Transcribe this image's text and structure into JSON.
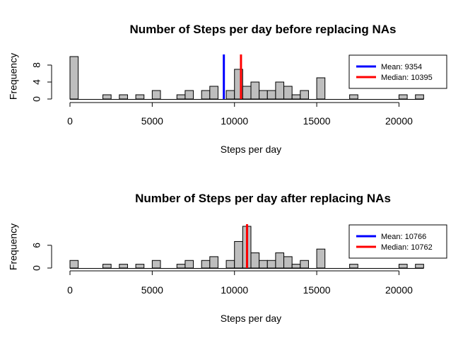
{
  "chart_data": [
    {
      "type": "bar",
      "title": "Number of Steps per day before replacing NAs",
      "xlabel": "Steps per day",
      "ylabel": "Frequency",
      "xlim": [
        0,
        22000
      ],
      "ylim": [
        0,
        10
      ],
      "x_ticks": [
        0,
        5000,
        10000,
        15000,
        20000
      ],
      "y_ticks": [
        0,
        4,
        8
      ],
      "bin_width": 500,
      "bin_start": 0,
      "counts": [
        10,
        0,
        0,
        0,
        1,
        0,
        1,
        0,
        1,
        0,
        2,
        0,
        0,
        1,
        2,
        0,
        2,
        3,
        0,
        2,
        7,
        3,
        4,
        2,
        2,
        4,
        3,
        1,
        2,
        0,
        5,
        0,
        0,
        0,
        1,
        0,
        0,
        0,
        0,
        0,
        1,
        0,
        1
      ],
      "bar_color": "#BEBEBE",
      "legend": {
        "position": "top-right",
        "entries": [
          {
            "label": "Mean:  9354",
            "color": "#0000FF"
          },
          {
            "label": "Median: 10395",
            "color": "#FF0000"
          }
        ]
      },
      "lines": [
        {
          "name": "Mean",
          "value": 9354,
          "color": "#0000FF"
        },
        {
          "name": "Median",
          "value": 10395,
          "color": "#FF0000"
        }
      ]
    },
    {
      "type": "bar",
      "title": "Number of Steps per day after replacing NAs",
      "xlabel": "Steps per day",
      "ylabel": "Frequency",
      "xlim": [
        0,
        22000
      ],
      "ylim": [
        0,
        11
      ],
      "x_ticks": [
        0,
        5000,
        10000,
        15000,
        20000
      ],
      "y_ticks": [
        0,
        6
      ],
      "bin_width": 500,
      "bin_start": 0,
      "counts": [
        2,
        0,
        0,
        0,
        1,
        0,
        1,
        0,
        1,
        0,
        2,
        0,
        0,
        1,
        2,
        0,
        2,
        3,
        0,
        2,
        7,
        11,
        4,
        2,
        2,
        4,
        3,
        1,
        2,
        0,
        5,
        0,
        0,
        0,
        1,
        0,
        0,
        0,
        0,
        0,
        1,
        0,
        1
      ],
      "bar_color": "#BEBEBE",
      "legend": {
        "position": "top-right",
        "entries": [
          {
            "label": "Mean:  10766",
            "color": "#0000FF"
          },
          {
            "label": "Median: 10762",
            "color": "#FF0000"
          }
        ]
      },
      "lines": [
        {
          "name": "Mean",
          "value": 10766,
          "color": "#0000FF"
        },
        {
          "name": "Median",
          "value": 10762,
          "color": "#FF0000"
        }
      ]
    }
  ]
}
